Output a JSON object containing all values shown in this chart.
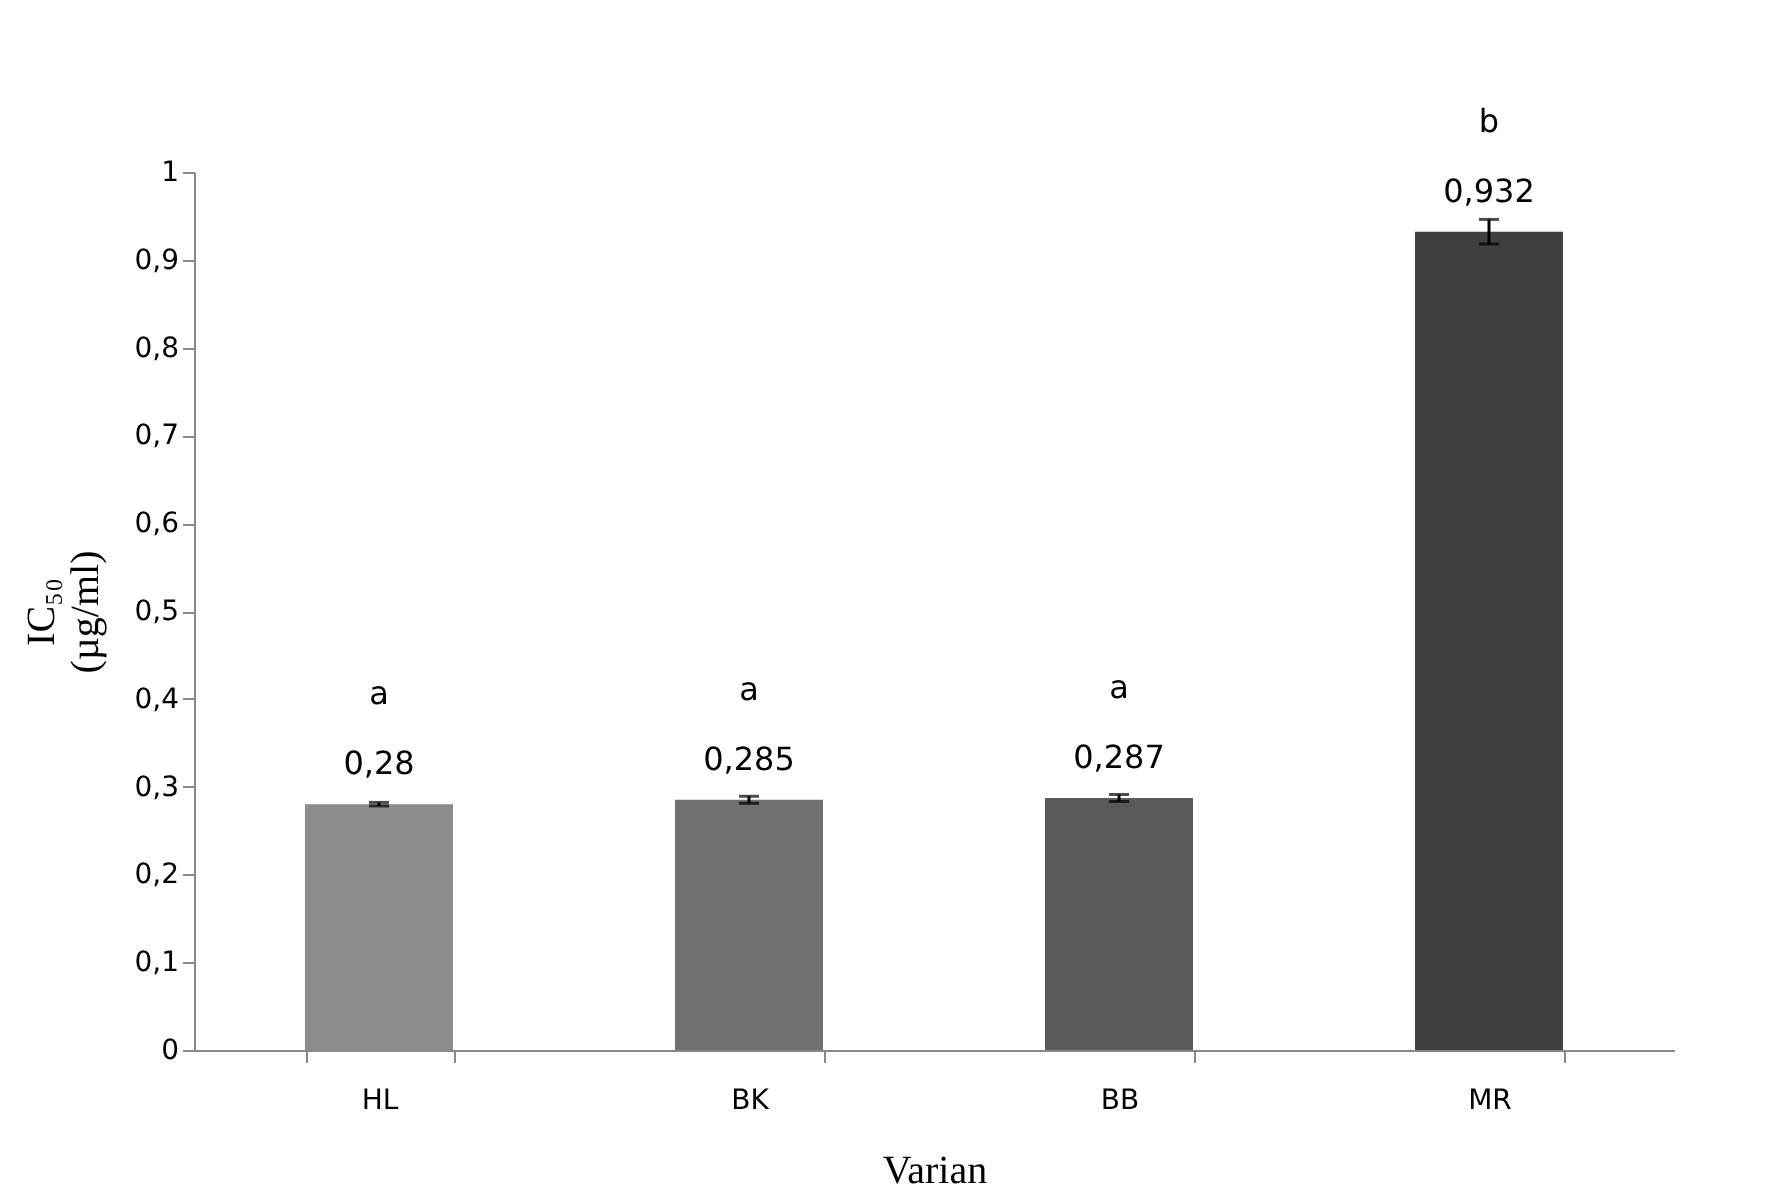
{
  "chart_data": {
    "type": "bar",
    "xlabel": "Varian",
    "ylabel": "IC₅₀\n(µg/ml)",
    "categories": [
      "HL",
      "BK",
      "BB",
      "MR"
    ],
    "values": [
      0.28,
      0.285,
      0.287,
      0.932
    ],
    "colors": [
      "#8c8c8c",
      "#707070",
      "#5a5a5a",
      "#404040"
    ],
    "errors": [
      0.002,
      0.004,
      0.004,
      0.014
    ],
    "value_labels": [
      "0,28",
      "0,285",
      "0,287",
      "0,932"
    ],
    "annotations": [
      {
        "text": "a",
        "x": "HL",
        "y": 0.28
      },
      {
        "text": "a",
        "x": "BK",
        "y": 0.285
      },
      {
        "text": "a",
        "x": "BB",
        "y": 0.287
      },
      {
        "text": "b",
        "x": "MR",
        "y": 0.932
      }
    ],
    "ylim": [
      0,
      1
    ],
    "yticks": [
      {
        "value": 0,
        "label": "0"
      },
      {
        "value": 0.1,
        "label": "0,1"
      },
      {
        "value": 0.2,
        "label": "0,2"
      },
      {
        "value": 0.3,
        "label": "0,3"
      },
      {
        "value": 0.4,
        "label": "0,4"
      },
      {
        "value": 0.5,
        "label": "0,5"
      },
      {
        "value": 0.6,
        "label": "0,6"
      },
      {
        "value": 0.7,
        "label": "0,7"
      },
      {
        "value": 0.8,
        "label": "0,8"
      },
      {
        "value": 0.9,
        "label": "0,9"
      },
      {
        "value": 1,
        "label": "1"
      }
    ],
    "grid": false
  }
}
